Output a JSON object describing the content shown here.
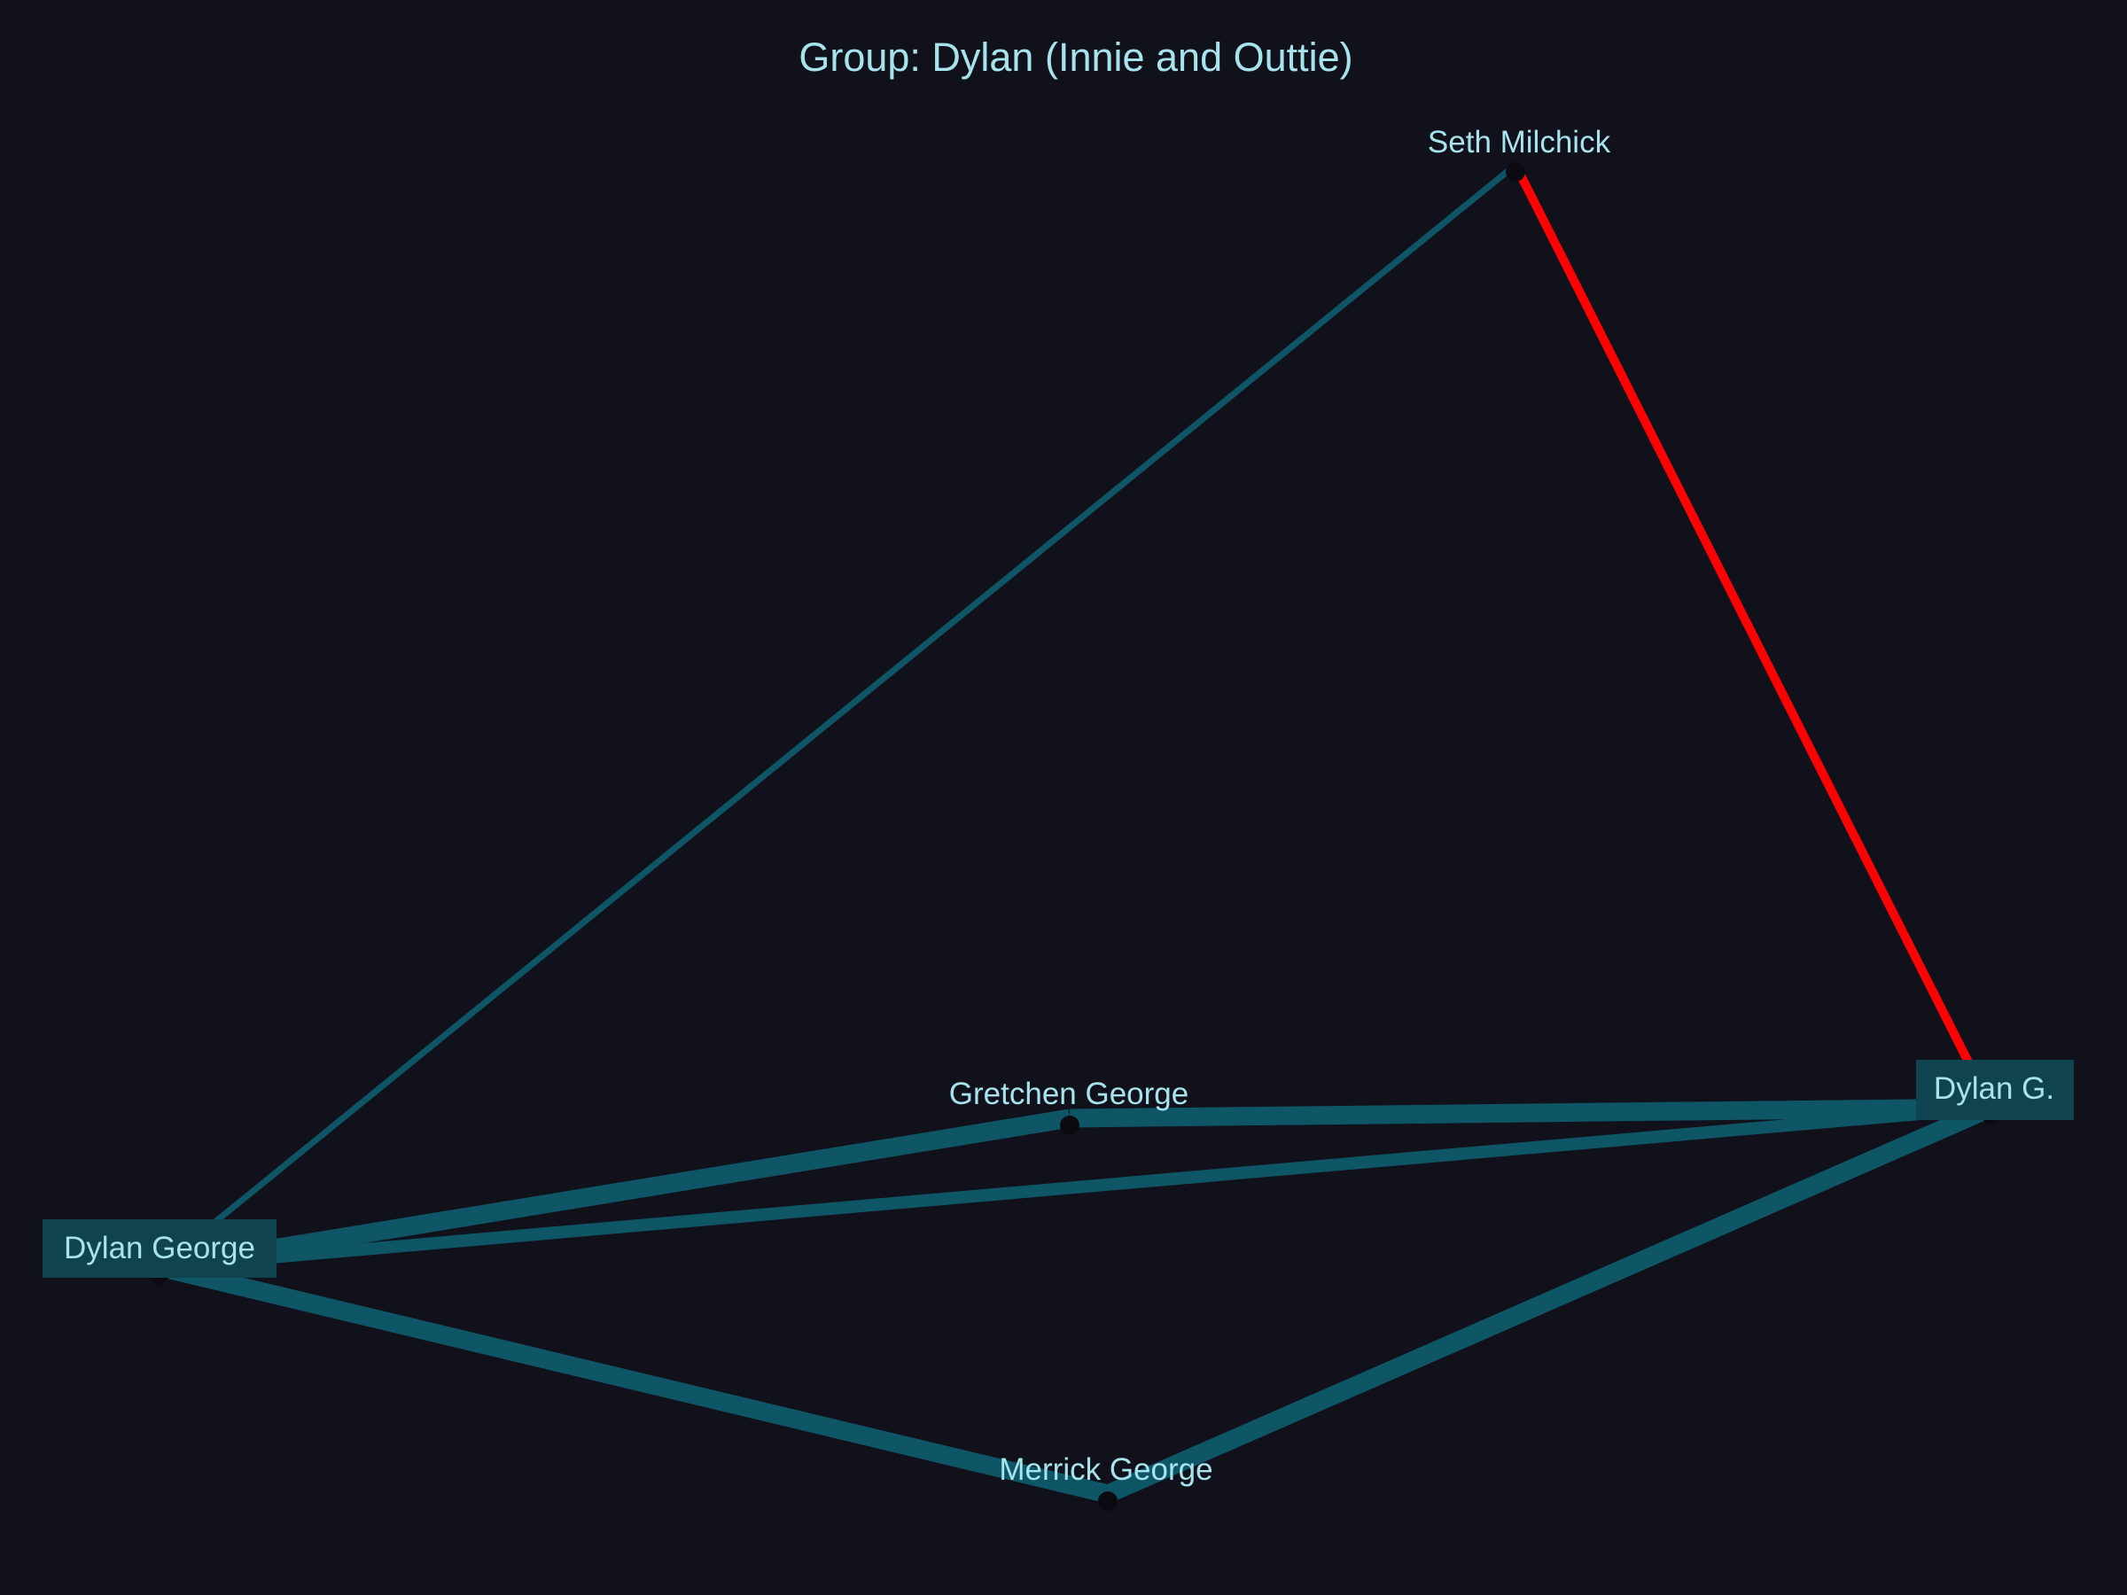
{
  "title": "Group: Dylan (Innie and Outtie)",
  "colors": {
    "background": "#11111b",
    "edge_default": "#0e5566",
    "edge_highlight": "#ff0000",
    "label_text": "#a6e3ec",
    "label_box": "#0f4350"
  },
  "nodes": [
    {
      "id": "seth",
      "label": "Seth Milchick",
      "boxed": false
    },
    {
      "id": "gretchen",
      "label": "Gretchen George",
      "boxed": false
    },
    {
      "id": "dylang",
      "label": "Dylan G.",
      "boxed": true
    },
    {
      "id": "dylangeorge",
      "label": "Dylan George",
      "boxed": true
    },
    {
      "id": "merrick",
      "label": "Merrick George",
      "boxed": false
    }
  ],
  "edges": [
    {
      "source": "dylangeorge",
      "target": "seth",
      "weight": 1,
      "highlight": false
    },
    {
      "source": "seth",
      "target": "dylang",
      "weight": 1.5,
      "highlight": true
    },
    {
      "source": "gretchen",
      "target": "dylang",
      "weight": 3,
      "highlight": false
    },
    {
      "source": "dylangeorge",
      "target": "gretchen",
      "weight": 3,
      "highlight": false
    },
    {
      "source": "dylangeorge",
      "target": "dylang",
      "weight": 2,
      "highlight": false
    },
    {
      "source": "dylangeorge",
      "target": "merrick",
      "weight": 3,
      "highlight": false
    },
    {
      "source": "merrick",
      "target": "dylang",
      "weight": 3,
      "highlight": false
    }
  ]
}
